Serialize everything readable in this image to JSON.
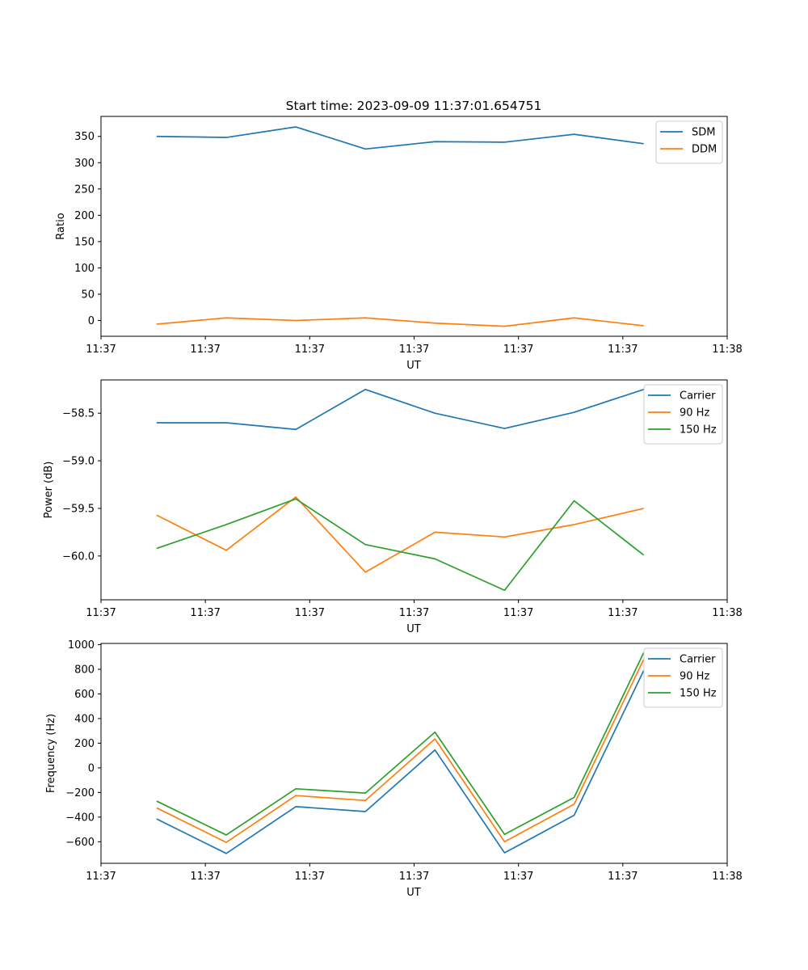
{
  "figure_title": "Start time: 2023-09-09 11:37:01.654751",
  "colors": {
    "blue": "#1f77b4",
    "orange": "#ff7f0e",
    "green": "#2ca02c"
  },
  "chart_data": [
    {
      "type": "line",
      "title": "Start time: 2023-09-09 11:37:01.654751",
      "xlabel": "UT",
      "ylabel": "Ratio",
      "x": [
        1,
        2,
        3,
        4,
        5,
        6,
        7,
        8
      ],
      "xlim": [
        0.2,
        9.2
      ],
      "x_ticks": [
        0.2,
        1.7,
        3.2,
        4.7,
        6.2,
        7.7,
        9.2
      ],
      "x_tick_labels": [
        "11:37",
        "11:37",
        "11:37",
        "11:37",
        "11:37",
        "11:37",
        "11:38"
      ],
      "ylim": [
        -30,
        388
      ],
      "y_ticks": [
        0,
        50,
        100,
        150,
        200,
        250,
        300,
        350
      ],
      "y_tick_labels": [
        "0",
        "50",
        "100",
        "150",
        "200",
        "250",
        "300",
        "350"
      ],
      "legend_position": "top-right",
      "series": [
        {
          "name": "SDM",
          "color": "#1f77b4",
          "values": [
            350,
            348,
            368,
            326,
            340,
            339,
            354,
            336
          ]
        },
        {
          "name": "DDM",
          "color": "#ff7f0e",
          "values": [
            -7,
            5,
            0,
            5,
            -5,
            -11,
            5,
            -10
          ]
        }
      ]
    },
    {
      "type": "line",
      "title": "",
      "xlabel": "UT",
      "ylabel": "Power (dB)",
      "x": [
        1,
        2,
        3,
        4,
        5,
        6,
        7,
        8
      ],
      "xlim": [
        0.2,
        9.2
      ],
      "x_ticks": [
        0.2,
        1.7,
        3.2,
        4.7,
        6.2,
        7.7,
        9.2
      ],
      "x_tick_labels": [
        "11:37",
        "11:37",
        "11:37",
        "11:37",
        "11:37",
        "11:37",
        "11:38"
      ],
      "ylim": [
        -60.46,
        -58.15
      ],
      "y_ticks": [
        -60.0,
        -59.5,
        -59.0,
        -58.5
      ],
      "y_tick_labels": [
        "−60.0",
        "−59.5",
        "−59.0",
        "−58.5"
      ],
      "legend_position": "top-right",
      "series": [
        {
          "name": "Carrier",
          "color": "#1f77b4",
          "values": [
            -58.6,
            -58.6,
            -58.67,
            -58.25,
            -58.5,
            -58.66,
            -58.49,
            -58.25
          ]
        },
        {
          "name": "90 Hz",
          "color": "#ff7f0e",
          "values": [
            -59.57,
            -59.94,
            -59.38,
            -60.17,
            -59.75,
            -59.8,
            -59.67,
            -59.5
          ]
        },
        {
          "name": "150 Hz",
          "color": "#2ca02c",
          "values": [
            -59.92,
            -59.67,
            -59.4,
            -59.88,
            -60.03,
            -60.36,
            -59.42,
            -59.99
          ]
        }
      ]
    },
    {
      "type": "line",
      "title": "",
      "xlabel": "UT",
      "ylabel": "Frequency (Hz)",
      "x": [
        1,
        2,
        3,
        4,
        5,
        6,
        7,
        8
      ],
      "xlim": [
        0.2,
        9.2
      ],
      "x_ticks": [
        0.2,
        1.7,
        3.2,
        4.7,
        6.2,
        7.7,
        9.2
      ],
      "x_tick_labels": [
        "11:37",
        "11:37",
        "11:37",
        "11:37",
        "11:37",
        "11:37",
        "11:38"
      ],
      "ylim": [
        -775,
        1010
      ],
      "y_ticks": [
        -600,
        -400,
        -200,
        0,
        200,
        400,
        600,
        800,
        1000
      ],
      "y_tick_labels": [
        "−600",
        "−400",
        "−200",
        "0",
        "200",
        "400",
        "600",
        "800",
        "1000"
      ],
      "legend_position": "top-right",
      "series": [
        {
          "name": "Carrier",
          "color": "#1f77b4",
          "values": [
            -415,
            -695,
            -315,
            -355,
            145,
            -690,
            -385,
            790
          ]
        },
        {
          "name": "90 Hz",
          "color": "#ff7f0e",
          "values": [
            -325,
            -605,
            -225,
            -265,
            235,
            -600,
            -295,
            880
          ]
        },
        {
          "name": "150 Hz",
          "color": "#2ca02c",
          "values": [
            -270,
            -545,
            -170,
            -205,
            290,
            -540,
            -240,
            935
          ]
        }
      ]
    }
  ]
}
